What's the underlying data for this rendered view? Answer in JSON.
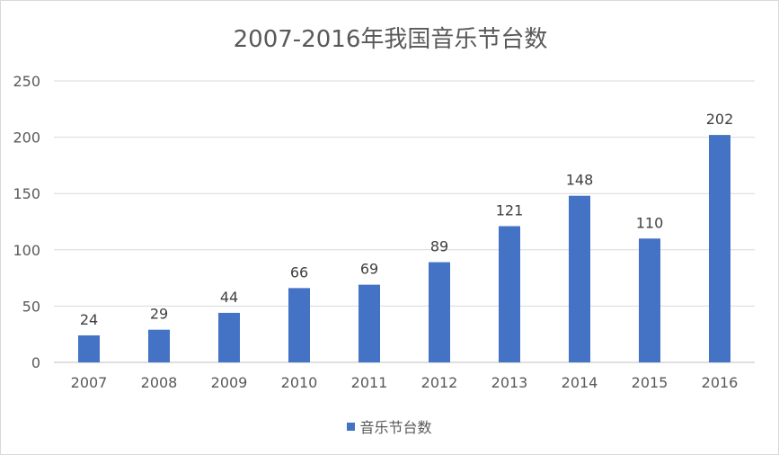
{
  "chart_data": {
    "type": "bar",
    "title": "2007-2016年我国音乐节台数",
    "categories": [
      "2007",
      "2008",
      "2009",
      "2010",
      "2011",
      "2012",
      "2013",
      "2014",
      "2015",
      "2016"
    ],
    "series": [
      {
        "name": "音乐节台数",
        "values": [
          24,
          29,
          44,
          66,
          69,
          89,
          121,
          148,
          110,
          202
        ],
        "color": "#4472c4"
      }
    ],
    "yticks": [
      "0",
      "50",
      "100",
      "150",
      "200",
      "250"
    ],
    "ylim": [
      0,
      250
    ],
    "data_labels": [
      "24",
      "29",
      "44",
      "66",
      "69",
      "89",
      "121",
      "148",
      "110",
      "202"
    ],
    "grid": true,
    "legend": "bottom"
  }
}
